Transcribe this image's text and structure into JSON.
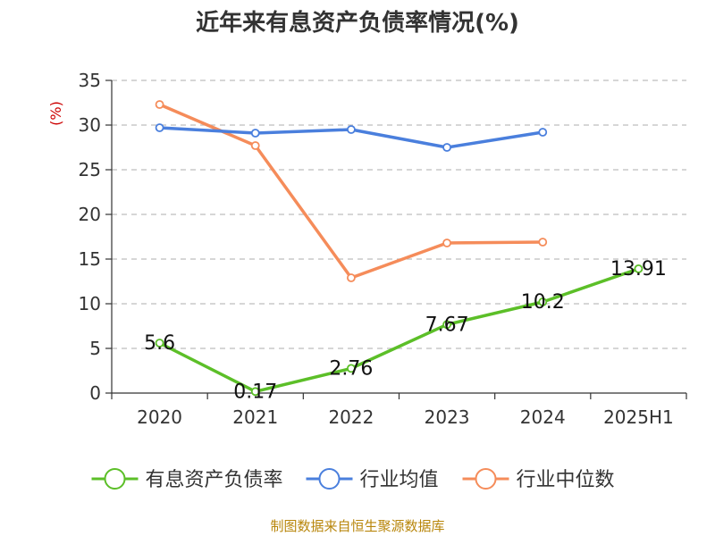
{
  "chart_data": {
    "type": "line",
    "title": "近年来有息资产负债率情况(%)",
    "ylabel": "(%)",
    "xlabel": "",
    "categories": [
      "2020",
      "2021",
      "2022",
      "2023",
      "2024",
      "2025H1"
    ],
    "ylim": [
      0,
      35
    ],
    "yticks": [
      0,
      5,
      10,
      15,
      20,
      25,
      30,
      35
    ],
    "grid": true,
    "legend_position": "bottom",
    "series": [
      {
        "name": "有息资产负债率",
        "color": "#5cbf28",
        "values": [
          5.6,
          0.17,
          2.76,
          7.67,
          10.2,
          13.91
        ],
        "data_labels": [
          "5.6",
          "0.17",
          "2.76",
          "7.67",
          "10.2",
          "13.91"
        ]
      },
      {
        "name": "行业均值",
        "color": "#4a7fdd",
        "values": [
          29.7,
          29.1,
          29.5,
          27.5,
          29.2,
          null
        ]
      },
      {
        "name": "行业中位数",
        "color": "#f58c5a",
        "values": [
          32.3,
          27.7,
          12.9,
          16.8,
          16.9,
          null
        ]
      }
    ]
  },
  "footer": {
    "source": "制图数据来自恒生聚源数据库"
  }
}
